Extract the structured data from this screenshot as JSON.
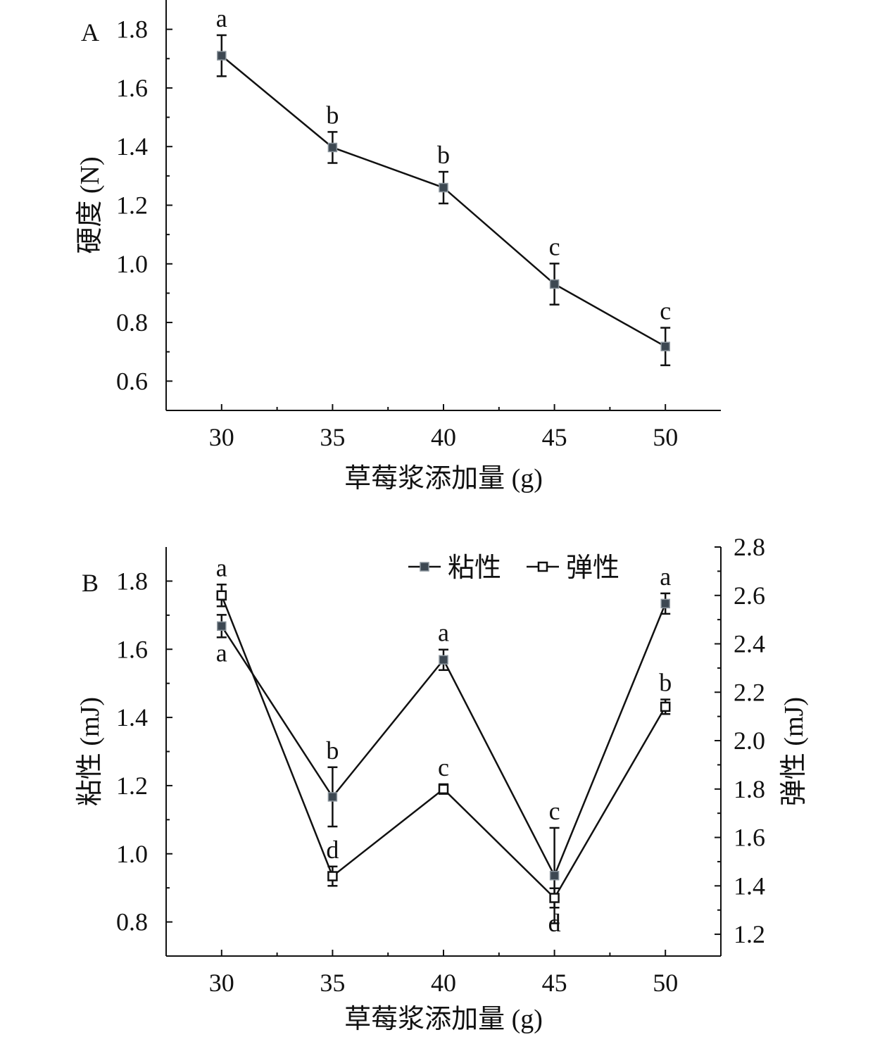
{
  "chart_data": [
    {
      "type": "line",
      "panel_label": "A",
      "title": "",
      "xlabel": "草莓浆添加量 (g)",
      "ylabel": "硬度 (N)",
      "x": [
        30,
        35,
        40,
        45,
        50
      ],
      "xticks": [
        "30",
        "35",
        "40",
        "45",
        "50"
      ],
      "xlim": [
        27.5,
        52.5
      ],
      "ylim": [
        0.5,
        1.9
      ],
      "yticks": [
        "0.6",
        "0.8",
        "1.0",
        "1.2",
        "1.4",
        "1.6",
        "1.8"
      ],
      "grid": false,
      "series": [
        {
          "name": "硬度",
          "values": [
            1.71,
            1.397,
            1.26,
            0.931,
            0.718
          ],
          "errors": [
            0.07,
            0.053,
            0.054,
            0.07,
            0.064
          ],
          "letters": [
            "a",
            "b",
            "b",
            "c",
            "c"
          ],
          "marker": "filled-square",
          "axis": "left"
        }
      ]
    },
    {
      "type": "line",
      "panel_label": "B",
      "title": "",
      "xlabel": "草莓浆添加量 (g)",
      "ylabel": "粘性 (mJ)",
      "ylabel_right": "弹性 (mJ)",
      "x": [
        30,
        35,
        40,
        45,
        50
      ],
      "xticks": [
        "30",
        "35",
        "40",
        "45",
        "50"
      ],
      "xlim": [
        27.5,
        52.5
      ],
      "ylim": [
        0.7,
        1.9
      ],
      "yticks": [
        "0.8",
        "1.0",
        "1.2",
        "1.4",
        "1.6",
        "1.8"
      ],
      "ylim_right": [
        1.11,
        2.8
      ],
      "yticks_right": [
        "1.2",
        "1.4",
        "1.6",
        "1.8",
        "2.0",
        "2.2",
        "2.4",
        "2.6",
        "2.8"
      ],
      "legend_position": "top-right",
      "grid": false,
      "series": [
        {
          "name": "粘性",
          "values": [
            1.668,
            1.167,
            1.569,
            0.936,
            1.734
          ],
          "errors": [
            0.033,
            0.087,
            0.03,
            0.14,
            0.03
          ],
          "letters": [
            "a",
            "b",
            "a",
            "c",
            "a"
          ],
          "letter_pos": [
            "below",
            "above",
            "above",
            "above",
            "above"
          ],
          "marker": "filled-square",
          "axis": "left"
        },
        {
          "name": "弹性",
          "values": [
            2.6,
            1.44,
            1.8,
            1.35,
            2.14
          ],
          "errors": [
            0.045,
            0.04,
            0.02,
            0.04,
            0.03
          ],
          "letters": [
            "a",
            "d",
            "c",
            "d",
            "b"
          ],
          "letter_pos": [
            "above",
            "above",
            "above",
            "below",
            "above"
          ],
          "marker": "open-square",
          "axis": "right"
        }
      ]
    }
  ]
}
